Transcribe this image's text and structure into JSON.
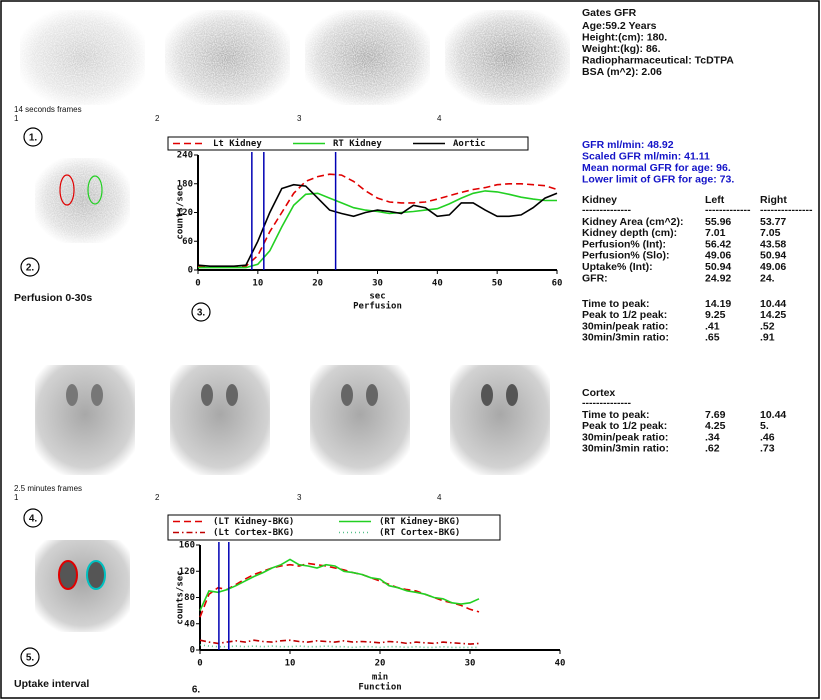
{
  "header": {
    "title": "Gates GFR",
    "lines": [
      "Age:59.2 Years",
      "Height:(cm): 180.",
      "Weight:(kg): 86.",
      "Radiopharmaceutical:  TcDTPA",
      "BSA (m^2): 2.06"
    ]
  },
  "frames_top": {
    "label": "14 seconds frames",
    "numbers": [
      "1",
      "2",
      "3",
      "4"
    ]
  },
  "frames_bottom": {
    "label": "2.5 minutes frames",
    "numbers": [
      "1",
      "2",
      "3",
      "4"
    ]
  },
  "step_labels": [
    "1.",
    "2.",
    "3.",
    "4.",
    "5.",
    "6."
  ],
  "captions": {
    "perfusion": "Perfusion 0-30s",
    "uptake": "Uptake interval"
  },
  "gfr": [
    "GFR ml/min: 48.92",
    "Scaled GFR ml/min: 41.11",
    "Mean normal GFR for age: 96.",
    "Lower limit of GFR for age: 73."
  ],
  "kidney_table": {
    "header": [
      "Kidney",
      "Left",
      "Right"
    ],
    "separator": [
      "--------------",
      "-------------",
      "---------------"
    ],
    "rows": [
      [
        "Kidney Area (cm^2):",
        "55.96",
        "53.77"
      ],
      [
        "Kidney depth (cm):",
        "7.01",
        "7.05"
      ],
      [
        "Perfusion% (Int):",
        "56.42",
        "43.58"
      ],
      [
        "Perfusion% (Slo):",
        "49.06",
        "50.94"
      ],
      [
        "Uptake% (Int):",
        "50.94",
        "49.06"
      ],
      [
        "GFR:",
        "24.92",
        "24."
      ]
    ],
    "timing_rows": [
      [
        "Time to peak:",
        "14.19",
        "10.44"
      ],
      [
        "Peak to 1/2 peak:",
        "9.25",
        "14.25"
      ],
      [
        "30min/peak ratio:",
        ".41",
        ".52"
      ],
      [
        "30min/3min ratio:",
        ".65",
        ".91"
      ]
    ]
  },
  "cortex_table": {
    "header": "Cortex",
    "separator": "--------------",
    "rows": [
      [
        "Time to peak:",
        "7.69",
        "10.44"
      ],
      [
        "Peak to 1/2 peak:",
        "4.25",
        "5."
      ],
      [
        "30min/peak ratio:",
        ".34",
        ".46"
      ],
      [
        "30min/3min ratio:",
        ".62",
        ".73"
      ]
    ]
  },
  "chart_data": [
    {
      "type": "line",
      "xlabel": "sec",
      "subtitle": "Perfusion",
      "ylabel": "counts/sec",
      "xlim": [
        0,
        60
      ],
      "xticks": [
        0,
        10,
        20,
        30,
        40,
        50,
        60
      ],
      "ylim": [
        0,
        240
      ],
      "yticks": [
        0,
        60,
        120,
        180,
        240
      ],
      "x": [
        0,
        2,
        4,
        6,
        8,
        10,
        12,
        14,
        16,
        18,
        20,
        22,
        24,
        26,
        28,
        30,
        32,
        34,
        36,
        38,
        40,
        42,
        44,
        46,
        48,
        50,
        52,
        54,
        56,
        58,
        60
      ],
      "markers": {
        "color": "#0000b4",
        "x": [
          9,
          11,
          23
        ]
      },
      "series": [
        {
          "name": "Lt Kidney",
          "color": "#e00000",
          "style": "dashed",
          "values": [
            8,
            7,
            7,
            7,
            8,
            30,
            80,
            120,
            160,
            185,
            195,
            200,
            198,
            185,
            165,
            150,
            142,
            140,
            140,
            142,
            148,
            155,
            162,
            168,
            172,
            178,
            180,
            180,
            178,
            176,
            168
          ]
        },
        {
          "name": "RT Kidney",
          "color": "#22d022",
          "style": "solid",
          "values": [
            5,
            5,
            5,
            5,
            5,
            12,
            40,
            90,
            135,
            158,
            160,
            150,
            140,
            130,
            125,
            122,
            118,
            120,
            122,
            125,
            128,
            138,
            150,
            160,
            165,
            163,
            158,
            152,
            148,
            145,
            145
          ]
        },
        {
          "name": "Aortic",
          "color": "#000000",
          "style": "solid",
          "values": [
            10,
            8,
            8,
            8,
            10,
            60,
            120,
            170,
            178,
            175,
            150,
            125,
            118,
            112,
            120,
            125,
            122,
            118,
            135,
            130,
            112,
            115,
            140,
            140,
            125,
            112,
            112,
            115,
            130,
            150,
            160
          ]
        }
      ]
    },
    {
      "type": "line",
      "xlabel": "min",
      "subtitle": "Function",
      "ylabel": "counts/sec",
      "xlim": [
        0,
        40
      ],
      "xticks": [
        0,
        10,
        20,
        30,
        40
      ],
      "ylim": [
        0,
        160
      ],
      "yticks": [
        0,
        40,
        80,
        120,
        160
      ],
      "x": [
        0,
        1,
        2,
        3,
        4,
        5,
        6,
        7,
        8,
        9,
        10,
        11,
        12,
        13,
        14,
        15,
        16,
        17,
        18,
        19,
        20,
        21,
        22,
        23,
        24,
        25,
        26,
        27,
        28,
        29,
        30,
        31
      ],
      "markers": {
        "color": "#0000b4",
        "x": [
          2.1,
          3.2
        ]
      },
      "series": [
        {
          "name": "(LT Kidney-BKG)",
          "color": "#e00000",
          "style": "dashed",
          "values": [
            50,
            85,
            95,
            92,
            100,
            108,
            115,
            120,
            125,
            128,
            130,
            128,
            132,
            130,
            128,
            125,
            122,
            118,
            115,
            110,
            105,
            100,
            95,
            92,
            90,
            85,
            80,
            75,
            72,
            68,
            62,
            58
          ]
        },
        {
          "name": "(RT Kidney-BKG)",
          "color": "#22d022",
          "style": "solid",
          "values": [
            60,
            90,
            88,
            92,
            98,
            105,
            112,
            118,
            125,
            130,
            138,
            130,
            128,
            125,
            130,
            128,
            120,
            118,
            115,
            110,
            108,
            98,
            95,
            90,
            88,
            85,
            80,
            78,
            72,
            70,
            72,
            78
          ]
        },
        {
          "name": "(Lt Cortex-BKG)",
          "color": "#c00000",
          "style": "dashdot",
          "values": [
            15,
            12,
            10,
            12,
            14,
            12,
            15,
            13,
            12,
            14,
            15,
            13,
            12,
            14,
            13,
            12,
            14,
            12,
            13,
            12,
            11,
            13,
            12,
            10,
            12,
            11,
            10,
            12,
            11,
            10,
            9,
            10
          ]
        },
        {
          "name": "(RT Cortex-BKG)",
          "color": "#55c08a",
          "style": "dotted",
          "values": [
            8,
            6,
            5,
            5,
            6,
            5,
            6,
            5,
            6,
            5,
            5,
            6,
            5,
            5,
            6,
            5,
            5,
            4,
            5,
            5,
            4,
            5,
            5,
            4,
            5,
            4,
            4,
            5,
            4,
            4,
            4,
            4
          ]
        }
      ]
    }
  ]
}
